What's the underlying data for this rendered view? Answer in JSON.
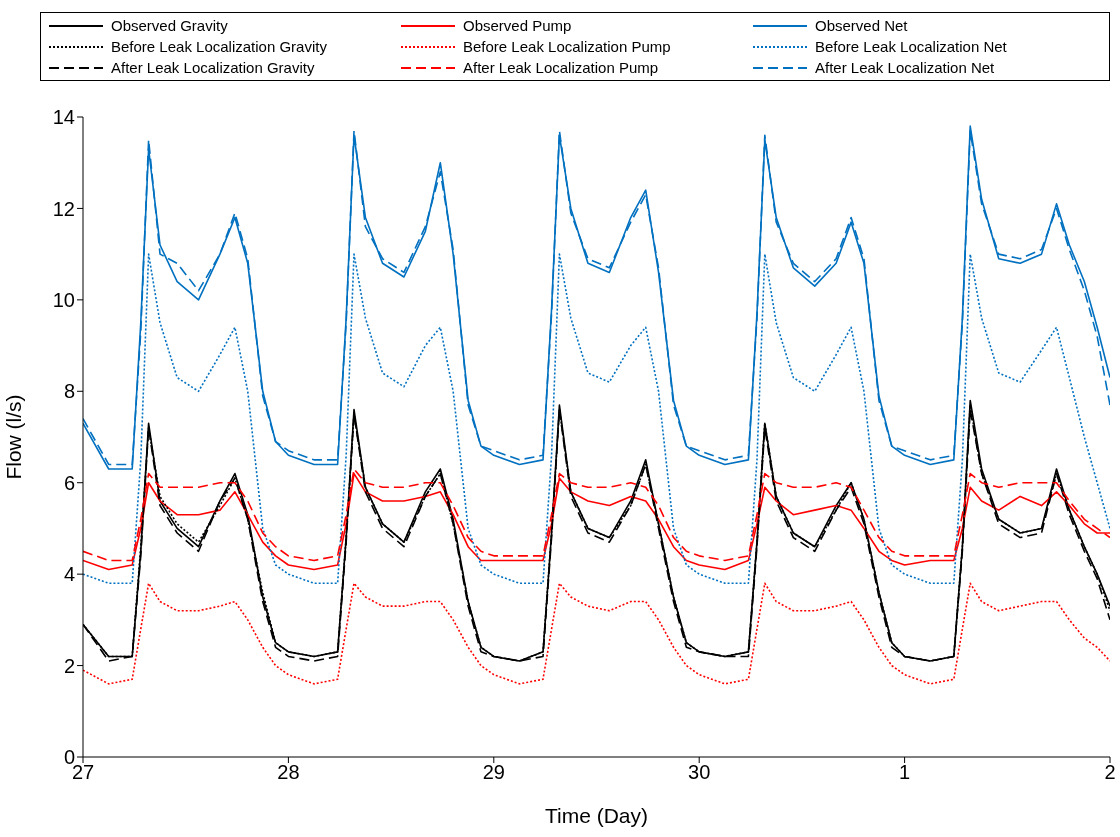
{
  "chart_data": {
    "type": "line",
    "xlabel": "Time (Day)",
    "ylabel": "Flow (l/s)",
    "legend": "top",
    "grid": false,
    "xlim": [
      "--04-27",
      "--05-02"
    ],
    "xticks": [
      {
        "value": "--04-27",
        "label": "27"
      },
      {
        "value": "--04-28",
        "label": "28"
      },
      {
        "value": "--04-29",
        "label": "29"
      },
      {
        "value": "--04-30",
        "label": "30"
      },
      {
        "value": "--05-01",
        "label": "1"
      },
      {
        "value": "--05-02",
        "label": "2"
      }
    ],
    "ylim": [
      0,
      14
    ],
    "yticks": [
      0,
      2,
      4,
      6,
      8,
      10,
      12,
      14
    ],
    "x": [
      "--04-27T00:00",
      "--04-27T03:00",
      "--04-27T05:45",
      "--04-27T06:45",
      "--04-27T07:40",
      "--04-27T09:00",
      "--04-27T11:00",
      "--04-27T13:30",
      "--04-27T16:00",
      "--04-27T17:45",
      "--04-27T19:15",
      "--04-27T21:00",
      "--04-27T22:30",
      "--04-28T00:00",
      "--04-28T03:00",
      "--04-28T05:45",
      "--04-28T06:45",
      "--04-28T07:40",
      "--04-28T09:00",
      "--04-28T11:00",
      "--04-28T13:30",
      "--04-28T16:00",
      "--04-28T17:45",
      "--04-28T19:15",
      "--04-28T21:00",
      "--04-28T22:30",
      "--04-29T00:00",
      "--04-29T03:00",
      "--04-29T05:45",
      "--04-29T06:45",
      "--04-29T07:40",
      "--04-29T09:00",
      "--04-29T11:00",
      "--04-29T13:30",
      "--04-29T16:00",
      "--04-29T17:45",
      "--04-29T19:15",
      "--04-29T21:00",
      "--04-29T22:30",
      "--04-30T00:00",
      "--04-30T03:00",
      "--04-30T05:45",
      "--04-30T06:45",
      "--04-30T07:40",
      "--04-30T09:00",
      "--04-30T11:00",
      "--04-30T13:30",
      "--04-30T16:00",
      "--04-30T17:45",
      "--04-30T19:15",
      "--04-30T21:00",
      "--04-30T22:30",
      "--05-01T00:00",
      "--05-01T03:00",
      "--05-01T05:45",
      "--05-01T06:45",
      "--05-01T07:40",
      "--05-01T09:00",
      "--05-01T11:00",
      "--05-01T13:30",
      "--05-01T16:00",
      "--05-01T17:45",
      "--05-01T19:15",
      "--05-01T21:00",
      "--05-01T22:30",
      "--05-02T00:00"
    ],
    "series": [
      {
        "name": "Observed Gravity",
        "color": "#000000",
        "line_style": "solid",
        "values": [
          2.9,
          2.2,
          2.2,
          4.5,
          7.3,
          5.6,
          5.0,
          4.6,
          5.6,
          6.2,
          5.3,
          3.5,
          2.5,
          2.3,
          2.2,
          2.3,
          4.8,
          7.6,
          5.9,
          5.1,
          4.7,
          5.8,
          6.3,
          5.2,
          3.4,
          2.4,
          2.2,
          2.1,
          2.3,
          4.9,
          7.7,
          5.8,
          5.0,
          4.8,
          5.6,
          6.5,
          5.1,
          3.5,
          2.5,
          2.3,
          2.2,
          2.3,
          4.7,
          7.3,
          5.7,
          4.9,
          4.6,
          5.5,
          6.0,
          5.2,
          3.6,
          2.5,
          2.2,
          2.1,
          2.2,
          4.6,
          7.8,
          6.3,
          5.2,
          4.9,
          5.0,
          6.3,
          5.4,
          4.6,
          4.0,
          3.3
        ]
      },
      {
        "name": "Observed Pump",
        "color": "#ff0000",
        "line_style": "solid",
        "values": [
          4.3,
          4.1,
          4.2,
          5.0,
          6.0,
          5.6,
          5.3,
          5.3,
          5.4,
          5.8,
          5.3,
          4.7,
          4.4,
          4.2,
          4.1,
          4.2,
          5.1,
          6.2,
          5.8,
          5.6,
          5.6,
          5.7,
          5.8,
          5.3,
          4.6,
          4.3,
          4.3,
          4.3,
          4.3,
          5.1,
          6.1,
          5.8,
          5.6,
          5.5,
          5.7,
          5.6,
          5.2,
          4.6,
          4.3,
          4.2,
          4.1,
          4.3,
          5.1,
          5.9,
          5.6,
          5.3,
          5.4,
          5.5,
          5.4,
          5.0,
          4.5,
          4.3,
          4.2,
          4.3,
          4.3,
          5.0,
          5.9,
          5.6,
          5.4,
          5.7,
          5.5,
          5.8,
          5.5,
          5.1,
          4.9,
          4.9
        ]
      },
      {
        "name": "Observed Net",
        "color": "#0070c0",
        "line_style": "solid",
        "values": [
          7.3,
          6.3,
          6.3,
          9.5,
          13.3,
          11.2,
          10.4,
          10.0,
          11.0,
          11.8,
          10.8,
          8.0,
          6.9,
          6.6,
          6.4,
          6.4,
          9.6,
          13.6,
          11.8,
          10.8,
          10.5,
          11.5,
          13.0,
          11.0,
          7.8,
          6.8,
          6.6,
          6.4,
          6.5,
          9.8,
          13.6,
          12.0,
          10.8,
          10.6,
          11.8,
          12.4,
          10.6,
          7.8,
          6.8,
          6.6,
          6.4,
          6.5,
          9.7,
          13.5,
          11.8,
          10.7,
          10.3,
          10.8,
          11.7,
          10.8,
          7.9,
          6.8,
          6.6,
          6.4,
          6.5,
          9.6,
          13.8,
          12.2,
          10.9,
          10.8,
          11.0,
          12.1,
          11.2,
          10.4,
          9.4,
          8.3
        ]
      },
      {
        "name": "Before Leak Localization Gravity",
        "color": "#000000",
        "line_style": "dotted",
        "values": [
          2.9,
          2.2,
          2.2,
          4.6,
          7.2,
          5.7,
          5.1,
          4.7,
          5.5,
          6.1,
          5.2,
          3.6,
          2.5,
          2.3,
          2.2,
          2.3,
          4.8,
          7.5,
          5.9,
          5.1,
          4.7,
          5.7,
          6.2,
          5.1,
          3.4,
          2.4,
          2.2,
          2.1,
          2.3,
          4.9,
          7.6,
          5.8,
          5.0,
          4.8,
          5.5,
          6.4,
          5.1,
          3.5,
          2.5,
          2.3,
          2.2,
          2.3,
          4.7,
          7.3,
          5.7,
          4.9,
          4.6,
          5.4,
          6.0,
          5.2,
          3.6,
          2.5,
          2.2,
          2.1,
          2.2,
          4.6,
          7.7,
          6.2,
          5.2,
          4.9,
          5.0,
          6.2,
          5.4,
          4.6,
          4.0,
          3.2
        ]
      },
      {
        "name": "Before Leak Localization Pump",
        "color": "#ff0000",
        "line_style": "dotted",
        "values": [
          1.9,
          1.6,
          1.7,
          2.8,
          3.8,
          3.4,
          3.2,
          3.2,
          3.3,
          3.4,
          3.0,
          2.4,
          2.0,
          1.8,
          1.6,
          1.7,
          2.8,
          3.8,
          3.5,
          3.3,
          3.3,
          3.4,
          3.4,
          3.0,
          2.4,
          2.0,
          1.8,
          1.6,
          1.7,
          2.8,
          3.8,
          3.5,
          3.3,
          3.2,
          3.4,
          3.4,
          3.0,
          2.4,
          2.0,
          1.8,
          1.6,
          1.7,
          2.8,
          3.8,
          3.4,
          3.2,
          3.2,
          3.3,
          3.4,
          3.0,
          2.4,
          2.0,
          1.8,
          1.6,
          1.7,
          2.8,
          3.8,
          3.4,
          3.2,
          3.3,
          3.4,
          3.4,
          3.0,
          2.6,
          2.4,
          2.1
        ]
      },
      {
        "name": "Before Leak Localization Net",
        "color": "#0070c0",
        "line_style": "dotted",
        "values": [
          4.0,
          3.8,
          3.8,
          6.5,
          11.0,
          9.5,
          8.3,
          8.0,
          8.8,
          9.4,
          8.0,
          5.0,
          4.2,
          4.0,
          3.8,
          3.8,
          6.6,
          11.0,
          9.6,
          8.4,
          8.1,
          9.0,
          9.4,
          8.0,
          5.0,
          4.2,
          4.0,
          3.8,
          3.8,
          6.6,
          11.0,
          9.6,
          8.4,
          8.2,
          9.0,
          9.4,
          8.0,
          5.0,
          4.2,
          4.0,
          3.8,
          3.8,
          6.5,
          11.0,
          9.5,
          8.3,
          8.0,
          8.8,
          9.4,
          8.0,
          5.0,
          4.2,
          4.0,
          3.8,
          3.8,
          6.5,
          11.0,
          9.6,
          8.4,
          8.2,
          8.9,
          9.4,
          8.3,
          7.0,
          6.0,
          5.0
        ]
      },
      {
        "name": "After Leak Localization Gravity",
        "color": "#000000",
        "line_style": "dashed",
        "values": [
          2.9,
          2.1,
          2.2,
          4.4,
          7.2,
          5.5,
          4.9,
          4.5,
          5.6,
          6.1,
          5.2,
          3.4,
          2.4,
          2.2,
          2.1,
          2.2,
          4.7,
          7.5,
          5.8,
          5.0,
          4.6,
          5.7,
          6.2,
          5.1,
          3.3,
          2.3,
          2.2,
          2.1,
          2.2,
          4.8,
          7.6,
          5.7,
          4.9,
          4.7,
          5.5,
          6.4,
          5.0,
          3.4,
          2.4,
          2.3,
          2.2,
          2.2,
          4.6,
          7.2,
          5.6,
          4.8,
          4.5,
          5.4,
          5.9,
          5.1,
          3.5,
          2.4,
          2.2,
          2.1,
          2.2,
          4.5,
          7.6,
          6.2,
          5.1,
          4.8,
          4.9,
          6.2,
          5.3,
          4.5,
          3.9,
          3.0
        ]
      },
      {
        "name": "After Leak Localization Pump",
        "color": "#ff0000",
        "line_style": "dashed",
        "values": [
          4.5,
          4.3,
          4.3,
          5.2,
          6.2,
          5.9,
          5.9,
          5.9,
          6.0,
          6.0,
          5.6,
          4.9,
          4.6,
          4.4,
          4.3,
          4.4,
          5.3,
          6.3,
          6.0,
          5.9,
          5.9,
          6.0,
          6.0,
          5.5,
          4.8,
          4.5,
          4.4,
          4.4,
          4.4,
          5.3,
          6.2,
          6.0,
          5.9,
          5.9,
          6.0,
          5.9,
          5.5,
          4.8,
          4.5,
          4.4,
          4.3,
          4.4,
          5.3,
          6.2,
          6.0,
          5.9,
          5.9,
          6.0,
          5.9,
          5.4,
          4.8,
          4.5,
          4.4,
          4.4,
          4.4,
          5.3,
          6.2,
          6.0,
          5.9,
          6.0,
          6.0,
          6.0,
          5.6,
          5.2,
          5.0,
          4.8
        ]
      },
      {
        "name": "After Leak Localization Net",
        "color": "#0070c0",
        "line_style": "dashed",
        "values": [
          7.4,
          6.4,
          6.4,
          9.3,
          13.5,
          11.0,
          10.8,
          10.2,
          11.0,
          11.9,
          10.9,
          7.9,
          6.9,
          6.7,
          6.5,
          6.5,
          9.5,
          13.7,
          11.6,
          10.9,
          10.6,
          11.6,
          12.8,
          11.1,
          7.7,
          6.8,
          6.7,
          6.5,
          6.6,
          9.7,
          13.7,
          11.9,
          10.9,
          10.7,
          11.7,
          12.3,
          10.7,
          7.7,
          6.8,
          6.7,
          6.5,
          6.6,
          9.6,
          13.6,
          11.7,
          10.8,
          10.4,
          10.9,
          11.8,
          10.9,
          7.8,
          6.8,
          6.7,
          6.5,
          6.6,
          9.5,
          13.7,
          12.1,
          11.0,
          10.9,
          11.1,
          12.0,
          11.1,
          10.2,
          9.2,
          7.7
        ]
      }
    ]
  }
}
